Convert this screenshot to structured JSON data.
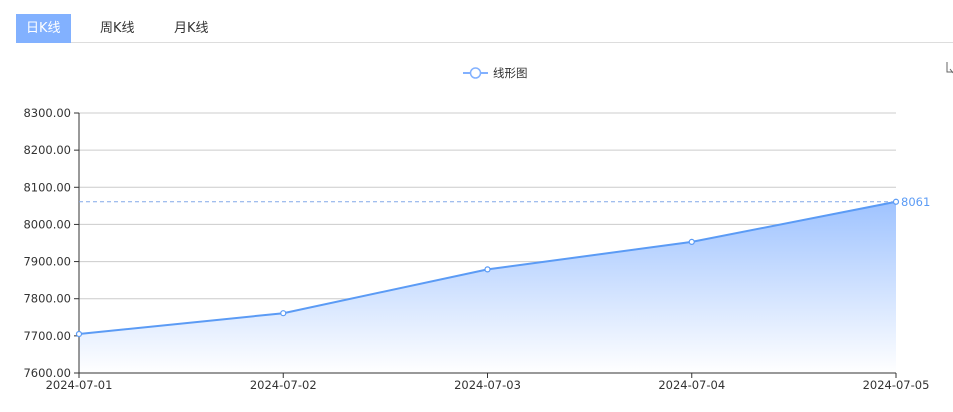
{
  "tabs": [
    {
      "label": "日K线",
      "active": true
    },
    {
      "label": "周K线",
      "active": false
    },
    {
      "label": "月K线",
      "active": false
    }
  ],
  "toolbox": {
    "icon": "download-icon"
  },
  "colors": {
    "accent": "#82b1ff",
    "line": "#5b9bf5"
  },
  "chart_data": {
    "type": "area",
    "legend": {
      "entries": [
        "线形图"
      ],
      "placement": "top-center"
    },
    "categories": [
      "2024-07-01",
      "2024-07-02",
      "2024-07-03",
      "2024-07-04",
      "2024-07-05"
    ],
    "series": [
      {
        "name": "线形图",
        "values": [
          7705,
          7761,
          7879,
          7953,
          8061
        ]
      }
    ],
    "yticks": [
      "7600.00",
      "7700.00",
      "7800.00",
      "7900.00",
      "8000.00",
      "8100.00",
      "8200.00",
      "8300.00"
    ],
    "ylim": [
      7600,
      8300
    ],
    "grid": true,
    "markline": {
      "value": 8061,
      "label": "8061"
    }
  }
}
